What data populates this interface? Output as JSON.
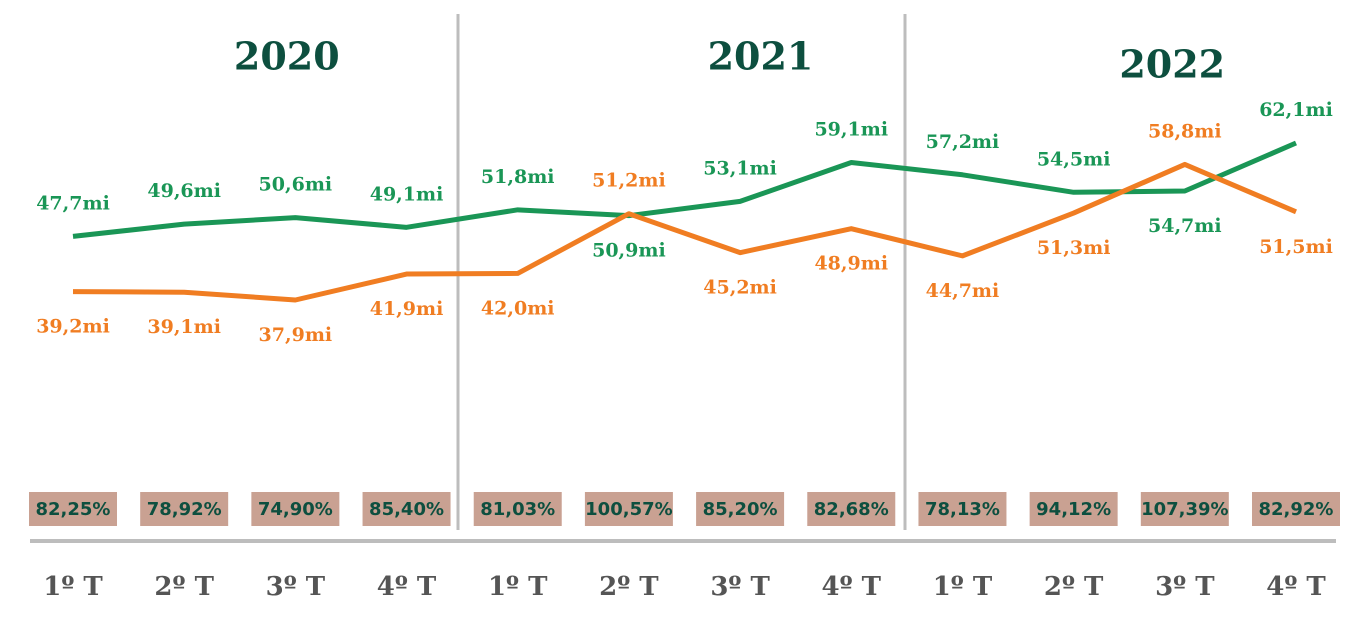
{
  "chart_data": {
    "type": "line",
    "years": [
      "2020",
      "2021",
      "2022"
    ],
    "categories": [
      "1º T",
      "2º T",
      "3º T",
      "4º T",
      "1º T",
      "2º T",
      "3º T",
      "4º T",
      "1º T",
      "2º T",
      "3º T",
      "4º T"
    ],
    "series": [
      {
        "color": "#1a9656",
        "values": [
          47.7,
          49.6,
          50.6,
          49.1,
          51.8,
          50.9,
          53.1,
          59.1,
          57.2,
          54.5,
          54.7,
          62.1
        ],
        "value_labels": [
          "47,7mi",
          "49,6mi",
          "50,6mi",
          "49,1mi",
          "51,8mi",
          "50,9mi",
          "53,1mi",
          "59,1mi",
          "57,2mi",
          "54,5mi",
          "54,7mi",
          "62,1mi"
        ]
      },
      {
        "color": "#f07d22",
        "values": [
          39.2,
          39.1,
          37.9,
          41.9,
          42.0,
          51.2,
          45.2,
          48.9,
          44.7,
          51.3,
          58.8,
          51.5
        ],
        "value_labels": [
          "39,2mi",
          "39,1mi",
          "37,9mi",
          "41,9mi",
          "42,0mi",
          "51,2mi",
          "45,2mi",
          "48,9mi",
          "44,7mi",
          "51,3mi",
          "58,8mi",
          "51,5mi"
        ]
      }
    ],
    "percent_values": [
      82.25,
      78.92,
      74.9,
      85.4,
      81.03,
      100.57,
      85.2,
      82.68,
      78.13,
      94.12,
      107.39,
      82.92
    ],
    "percent_labels": [
      "82,25%",
      "78,92%",
      "74,90%",
      "85,40%",
      "81,03%",
      "100,57%",
      "85,20%",
      "82,68%",
      "78,13%",
      "94,12%",
      "107,39%",
      "82,92%"
    ]
  }
}
